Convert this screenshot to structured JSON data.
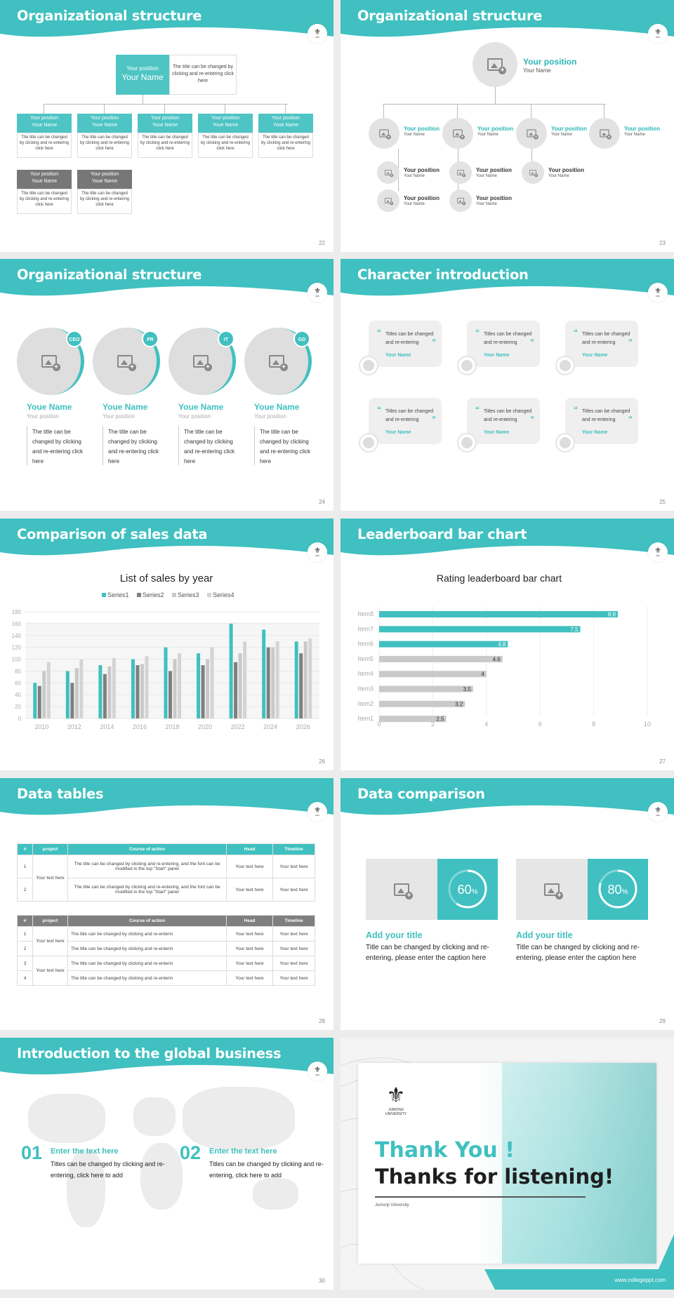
{
  "slides": {
    "s22": {
      "title": "Organizational structure",
      "page": "22",
      "top": {
        "position": "Your position",
        "name": "Your Name",
        "desc": "The title can be changed by clicking and re-entering click here"
      },
      "row1": [
        {
          "position": "Your position",
          "name": "Youe Name",
          "desc": "The title can be changed by clicking and re-entering click here"
        },
        {
          "position": "Your position",
          "name": "Youe Name",
          "desc": "The title can be changed by clicking and re-entering click here"
        },
        {
          "position": "Your position",
          "name": "Youe Name",
          "desc": "The title can be changed by clicking and re-entering click here"
        },
        {
          "position": "Your position",
          "name": "Youe Name",
          "desc": "The title can be changed by clicking and re-entering click here"
        },
        {
          "position": "Your position",
          "name": "Youe Name",
          "desc": "The title can be changed by clicking and re-entering click here"
        }
      ],
      "row2": [
        {
          "position": "Your position",
          "name": "Youe Name",
          "desc": "The title can be changed by clicking and re-entering click here"
        },
        {
          "position": "Your position",
          "name": "Youe Name",
          "desc": "The title can be changed by clicking and re-entering click here"
        }
      ]
    },
    "s23": {
      "title": "Organizational structure",
      "page": "23",
      "top": {
        "position": "Your position",
        "name": "Your Name"
      },
      "mid": [
        {
          "position": "Your position",
          "name": "Your Name"
        },
        {
          "position": "Your position",
          "name": "Your Name"
        },
        {
          "position": "Your position",
          "name": "Your Name"
        },
        {
          "position": "Your position",
          "name": "Your Name"
        }
      ],
      "sub": [
        {
          "position": "Your position",
          "name": "Your Name"
        },
        {
          "position": "Your position",
          "name": "Your Name"
        },
        {
          "position": "Your position",
          "name": "Your Name"
        },
        {
          "position": "Your position",
          "name": "Your Name"
        },
        {
          "position": "Your position",
          "name": "Your Name"
        }
      ]
    },
    "s24": {
      "title": "Organizational structure",
      "page": "24",
      "members": [
        {
          "tag": "CEO",
          "name": "Youe Name",
          "position": "Your position",
          "desc": "The title can be changed by clicking and re-entering click here"
        },
        {
          "tag": "PR",
          "name": "Youe Name",
          "position": "Your position",
          "desc": "The title can be changed by clicking and re-entering click here"
        },
        {
          "tag": "IT",
          "name": "Youe Name",
          "position": "Your position",
          "desc": "The title can be changed by clicking and re-entering click here"
        },
        {
          "tag": "GD",
          "name": "Youe Name",
          "position": "Your position",
          "desc": "The title can be changed by clicking and re-entering click here"
        }
      ]
    },
    "s25": {
      "title": "Character introduction",
      "page": "25",
      "cards": [
        {
          "text": "Titles can be changed and re-entering",
          "name": "Your Name"
        },
        {
          "text": "Titles can be changed and re-entering",
          "name": "Your Name"
        },
        {
          "text": "Titles can be changed and re-entering",
          "name": "Your Name"
        },
        {
          "text": "Titles can be changed and re-entering",
          "name": "Your Name"
        },
        {
          "text": "Titles can be changed and re-entering",
          "name": "Your Name"
        },
        {
          "text": "Titles can be changed and re-entering",
          "name": "Your Name"
        }
      ]
    },
    "s26": {
      "title": "Comparison of sales data",
      "page": "26"
    },
    "s27": {
      "title": "Leaderboard bar chart",
      "page": "27"
    },
    "s28": {
      "title": "Data tables",
      "page": "28",
      "t1": {
        "headers": [
          "#",
          "project",
          "Course of action",
          "Head",
          "Timeline"
        ],
        "project": "Your text here",
        "rows": [
          {
            "n": "1",
            "action": "The title can be changed by clicking and re-entering, and the font can be modified in the top \"Start\" panel",
            "head": "Your text here",
            "timeline": "Your text here"
          },
          {
            "n": "2",
            "action": "The title can be changed by clicking and re-entering, and the font can be modified in the top \"Start\" panel",
            "head": "Your text here",
            "timeline": "Your text here"
          }
        ]
      },
      "t2": {
        "headers": [
          "#",
          "project",
          "Course of action",
          "Head",
          "Timeline"
        ],
        "project_a": "Your text here",
        "project_b": "Your text here",
        "rows": [
          {
            "n": "1",
            "action": "The title can be changed by clicking and re-enterin",
            "head": "Your text here",
            "timeline": "Your text here"
          },
          {
            "n": "2",
            "action": "The title can be changed by clicking and re-enterin",
            "head": "Your text here",
            "timeline": "Your text here"
          },
          {
            "n": "3",
            "action": "The title can be changed by clicking and re-enterin",
            "head": "Your text here",
            "timeline": "Your text here"
          },
          {
            "n": "4",
            "action": "The title can be changed by clicking and re-enterin",
            "head": "Your text here",
            "timeline": "Your text here"
          }
        ]
      }
    },
    "s29": {
      "title": "Data comparison",
      "page": "29",
      "items": [
        {
          "percent": "60",
          "unit": "%",
          "heading": "Add your title",
          "text": "Title can be changed by clicking and re-entering, please enter the caption here"
        },
        {
          "percent": "80",
          "unit": "%",
          "heading": "Add your title",
          "text": "Title can be changed by clicking and re-entering, please enter the caption here"
        }
      ]
    },
    "s30": {
      "title": "Introduction to the global business",
      "page": "30",
      "items": [
        {
          "num": "01",
          "heading": "Enter the text here",
          "text": "Titles can be changed by clicking and re-entering, click here to add"
        },
        {
          "num": "02",
          "heading": "Enter the text here",
          "text": "Titles can be changed by clicking and re-entering, click here to add"
        }
      ]
    },
    "s31": {
      "logo_text": "JUMONJI UNIVERSITY",
      "thank": "Thank You !",
      "listening": "Thanks for listening!",
      "university": "Jumonji University",
      "url": "www.collegeppt.com"
    }
  },
  "colors": {
    "teal": "#40c0c0",
    "gray": "#a9a9a9",
    "dark_gray": "#7f7f7f",
    "light_gray": "#c9c9c9"
  },
  "chart_data": [
    {
      "type": "bar",
      "title": "List of sales by year",
      "categories": [
        "2010",
        "2012",
        "2014",
        "2016",
        "2018",
        "2020",
        "2022",
        "2024",
        "2026"
      ],
      "series": [
        {
          "name": "Series1",
          "values": [
            60,
            80,
            90,
            100,
            120,
            110,
            160,
            150,
            130
          ]
        },
        {
          "name": "Series2",
          "values": [
            55,
            60,
            75,
            90,
            80,
            90,
            95,
            120,
            110
          ]
        },
        {
          "name": "Series3",
          "values": [
            80,
            85,
            88,
            92,
            100,
            100,
            110,
            120,
            130
          ]
        },
        {
          "name": "Series4",
          "values": [
            95,
            100,
            102,
            105,
            110,
            120,
            130,
            130,
            135
          ]
        }
      ],
      "ylim": [
        0,
        180
      ],
      "yticks": [
        0,
        20,
        40,
        60,
        80,
        100,
        120,
        140,
        160,
        180
      ],
      "legend": "top"
    },
    {
      "type": "bar",
      "orientation": "horizontal",
      "title": "Rating leaderboard bar chart",
      "categories": [
        "Item8",
        "Item7",
        "Item6",
        "Item5",
        "Item4",
        "Item3",
        "Item2",
        "Item1"
      ],
      "values": [
        8.9,
        7.5,
        4.8,
        4.6,
        4,
        3.5,
        3.2,
        2.5
      ],
      "xlim": [
        0,
        10
      ],
      "xticks": [
        0,
        2,
        4,
        6,
        8,
        10
      ]
    }
  ]
}
